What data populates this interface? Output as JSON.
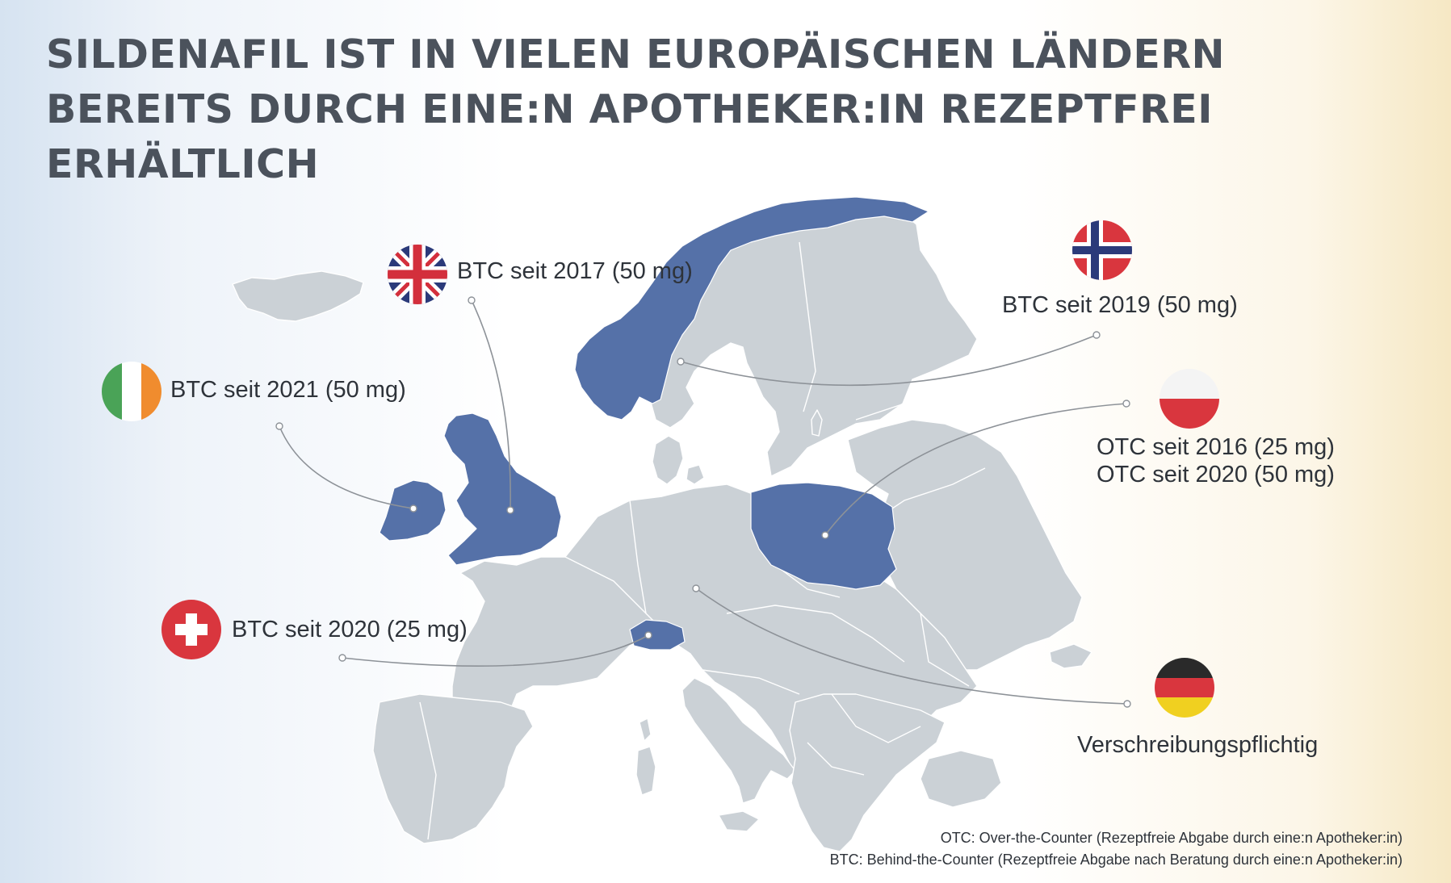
{
  "title_lines": [
    "SILDENAFIL IST IN VIELEN EUROPÄISCHEN LÄNDERN",
    "BEREITS DURCH EINE:N APOTHEKER:IN REZEPTFREI",
    "ERHÄLTLICH"
  ],
  "colors": {
    "highlighted_country": "#5571a8",
    "other_country": "#cbd1d6",
    "connector": "#8d9298",
    "title": "#4b525c"
  },
  "countries": [
    {
      "id": "uk",
      "flag_icon": "uk-flag-icon",
      "lines": [
        "BTC seit 2017 (50 mg)"
      ]
    },
    {
      "id": "norway",
      "flag_icon": "norway-flag-icon",
      "lines": [
        "BTC seit 2019 (50 mg)"
      ]
    },
    {
      "id": "ireland",
      "flag_icon": "ireland-flag-icon",
      "lines": [
        "BTC seit 2021 (50 mg)"
      ]
    },
    {
      "id": "poland",
      "flag_icon": "poland-flag-icon",
      "lines": [
        "OTC seit 2016 (25 mg)",
        "OTC seit 2020 (50 mg)"
      ]
    },
    {
      "id": "switzerland",
      "flag_icon": "swiss-flag-icon",
      "lines": [
        "BTC seit 2020 (25 mg)"
      ]
    },
    {
      "id": "germany",
      "flag_icon": "germany-flag-icon",
      "lines": [
        "Verschreibungspflichtig"
      ]
    }
  ],
  "footnotes": [
    "OTC: Over-the-Counter (Rezeptfreie Abgabe durch eine:n Apotheker:in)",
    "BTC: Behind-the-Counter (Rezeptfreie Abgabe nach Beratung durch eine:n Apotheker:in)"
  ]
}
